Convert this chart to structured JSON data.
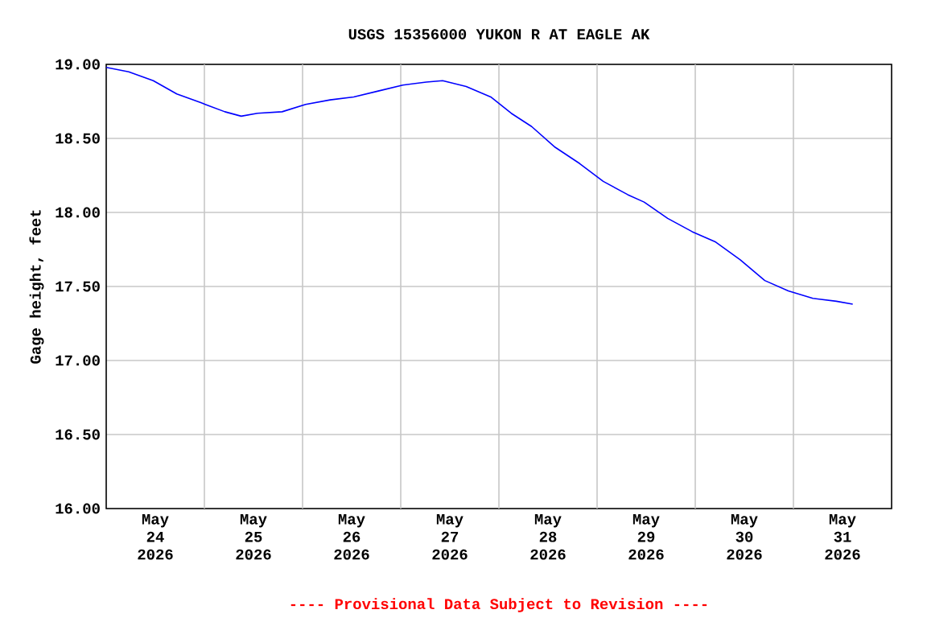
{
  "chart_data": {
    "type": "line",
    "title": "USGS 15356000 YUKON R AT EAGLE AK",
    "ylabel": "Gage height, feet",
    "annotations": [
      "---- Provisional Data Subject to Revision ----"
    ],
    "x": [
      "2026-05-24T00:00",
      "2026-05-24T05:30",
      "2026-05-24T11:30",
      "2026-05-24T17:15",
      "2026-05-24T23:15",
      "2026-05-25T05:00",
      "2026-05-25T09:00",
      "2026-05-25T13:00",
      "2026-05-25T19:00",
      "2026-05-26T00:45",
      "2026-05-26T06:45",
      "2026-05-26T12:30",
      "2026-05-26T18:30",
      "2026-05-27T00:30",
      "2026-05-27T06:15",
      "2026-05-27T10:15",
      "2026-05-27T16:00",
      "2026-05-27T22:00",
      "2026-05-28T03:00",
      "2026-05-28T08:00",
      "2026-05-28T13:45",
      "2026-05-28T19:45",
      "2026-05-29T01:30",
      "2026-05-29T07:30",
      "2026-05-29T11:30",
      "2026-05-29T17:15",
      "2026-05-29T23:15",
      "2026-05-30T05:00",
      "2026-05-30T11:00",
      "2026-05-30T17:00",
      "2026-05-30T22:45",
      "2026-05-31T04:45",
      "2026-05-31T10:30",
      "2026-05-31T14:30"
    ],
    "series": [
      {
        "color": "#0000ff",
        "values": [
          18.98,
          18.95,
          18.89,
          18.8,
          18.74,
          18.68,
          18.65,
          18.67,
          18.68,
          18.73,
          18.76,
          18.78,
          18.82,
          18.86,
          18.88,
          18.89,
          18.85,
          18.78,
          18.67,
          18.58,
          18.44,
          18.33,
          18.21,
          18.12,
          18.07,
          17.96,
          17.87,
          17.8,
          17.68,
          17.54,
          17.47,
          17.42,
          17.4,
          17.38
        ]
      }
    ],
    "xlim": [
      "2026-05-24T00:00",
      "2026-06-01T00:00"
    ],
    "xticks": [
      {
        "value": "2026-05-24T12:00",
        "label": "May 24 2026"
      },
      {
        "value": "2026-05-25T12:00",
        "label": "May 25 2026"
      },
      {
        "value": "2026-05-26T12:00",
        "label": "May 26 2026"
      },
      {
        "value": "2026-05-27T12:00",
        "label": "May 27 2026"
      },
      {
        "value": "2026-05-28T12:00",
        "label": "May 28 2026"
      },
      {
        "value": "2026-05-29T12:00",
        "label": "May 29 2026"
      },
      {
        "value": "2026-05-30T12:00",
        "label": "May 30 2026"
      },
      {
        "value": "2026-05-31T12:00",
        "label": "May 31 2026"
      },
      {
        "value": "2026-05-25T00:00",
        "label": null
      },
      {
        "value": "2026-05-26T00:00",
        "label": null
      },
      {
        "value": "2026-05-27T00:00",
        "label": null
      },
      {
        "value": "2026-05-28T00:00",
        "label": null
      },
      {
        "value": "2026-05-29T00:00",
        "label": null
      },
      {
        "value": "2026-05-30T00:00",
        "label": null
      },
      {
        "value": "2026-05-31T00:00",
        "label": null
      }
    ],
    "ylim": [
      16,
      19
    ],
    "yticks": [
      {
        "value": 16,
        "label": "16.00"
      },
      {
        "value": 16.5,
        "label": "16.50"
      },
      {
        "value": 17,
        "label": "17.00"
      },
      {
        "value": 17.5,
        "label": "17.50"
      },
      {
        "value": 18,
        "label": "18.00"
      },
      {
        "value": 18.5,
        "label": "18.50"
      },
      {
        "value": 19,
        "label": "19.00"
      }
    ],
    "grid": true
  }
}
